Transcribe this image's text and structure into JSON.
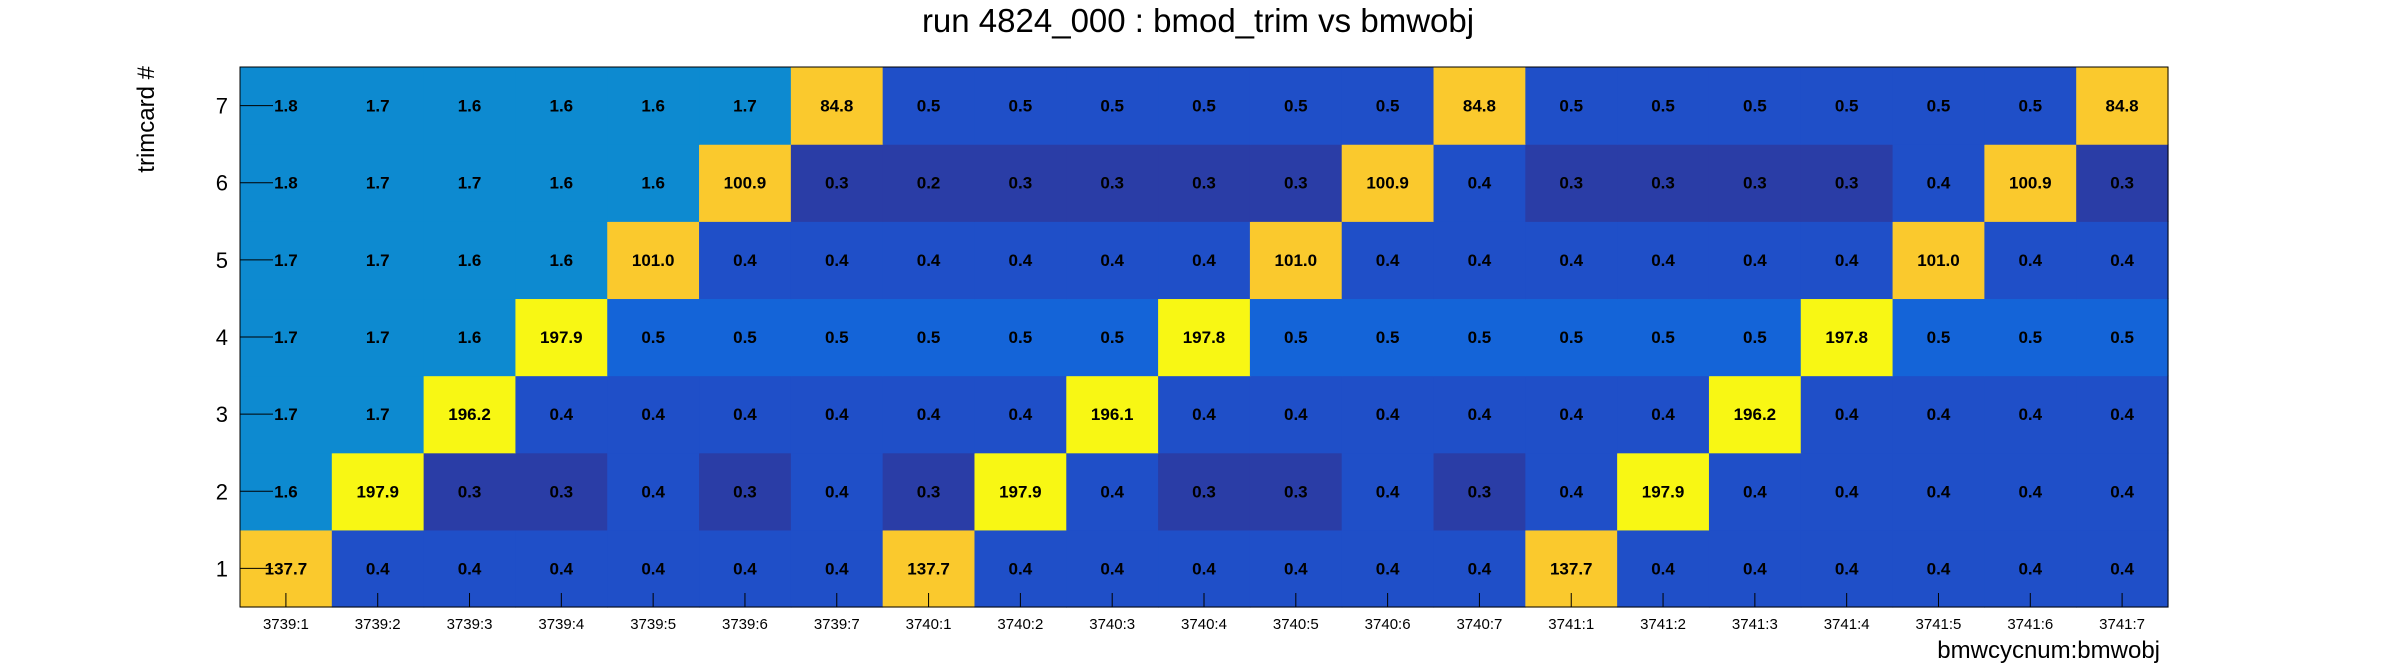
{
  "chart_data": {
    "type": "heatmap",
    "title": "run 4824_000 : bmod_trim vs bmwobj",
    "xlabel": "bmwcycnum:bmwobj",
    "ylabel": "trimcard #",
    "x_categories": [
      "3739:1",
      "3739:2",
      "3739:3",
      "3739:4",
      "3739:5",
      "3739:6",
      "3739:7",
      "3740:1",
      "3740:2",
      "3740:3",
      "3740:4",
      "3740:5",
      "3740:6",
      "3740:7",
      "3741:1",
      "3741:2",
      "3741:3",
      "3741:4",
      "3741:5",
      "3741:6",
      "3741:7"
    ],
    "y_categories": [
      "1",
      "2",
      "3",
      "4",
      "5",
      "6",
      "7"
    ],
    "values": [
      [
        137.7,
        0.4,
        0.4,
        0.4,
        0.4,
        0.4,
        0.4,
        137.7,
        0.4,
        0.4,
        0.4,
        0.4,
        0.4,
        0.4,
        137.7,
        0.4,
        0.4,
        0.4,
        0.4,
        0.4,
        0.4
      ],
      [
        1.6,
        197.9,
        0.3,
        0.3,
        0.4,
        0.3,
        0.4,
        0.3,
        197.9,
        0.4,
        0.3,
        0.3,
        0.4,
        0.3,
        0.4,
        197.9,
        0.4,
        0.4,
        0.4,
        0.4,
        0.4
      ],
      [
        1.7,
        1.7,
        196.2,
        0.4,
        0.4,
        0.4,
        0.4,
        0.4,
        0.4,
        196.1,
        0.4,
        0.4,
        0.4,
        0.4,
        0.4,
        0.4,
        196.2,
        0.4,
        0.4,
        0.4,
        0.4
      ],
      [
        1.7,
        1.7,
        1.6,
        197.9,
        0.5,
        0.5,
        0.5,
        0.5,
        0.5,
        0.5,
        197.8,
        0.5,
        0.5,
        0.5,
        0.5,
        0.5,
        0.5,
        197.8,
        0.5,
        0.5,
        0.5
      ],
      [
        1.7,
        1.7,
        1.6,
        1.6,
        101.0,
        0.4,
        0.4,
        0.4,
        0.4,
        0.4,
        0.4,
        101.0,
        0.4,
        0.4,
        0.4,
        0.4,
        0.4,
        0.4,
        101.0,
        0.4,
        0.4
      ],
      [
        1.8,
        1.7,
        1.7,
        1.6,
        1.6,
        100.9,
        0.3,
        0.2,
        0.3,
        0.3,
        0.3,
        0.3,
        100.9,
        0.4,
        0.3,
        0.3,
        0.3,
        0.3,
        0.4,
        100.9,
        0.3
      ],
      [
        1.8,
        1.7,
        1.6,
        1.6,
        1.6,
        1.7,
        84.8,
        0.5,
        0.5,
        0.5,
        0.5,
        0.5,
        0.5,
        84.8,
        0.5,
        0.5,
        0.5,
        0.5,
        0.5,
        0.5,
        84.8
      ]
    ],
    "value_format": "0.0",
    "colors": {
      "dark": "#2a3da6",
      "mid": "#1f4fc8",
      "row4": "#1464d8",
      "light": "#0d8ad0",
      "orange": "#fac92d",
      "yellow": "#f8f714"
    },
    "grid": false
  }
}
